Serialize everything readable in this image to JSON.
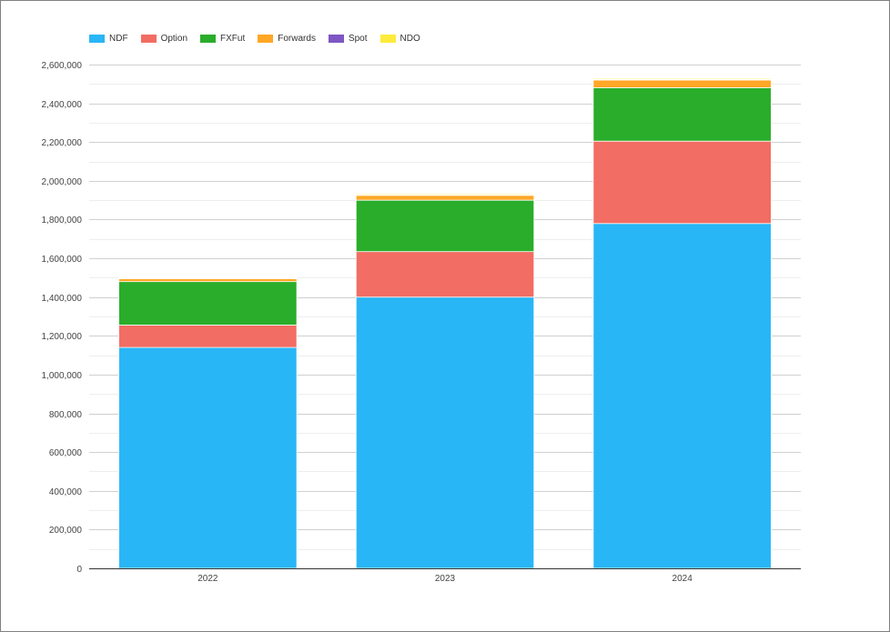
{
  "chart_data": {
    "type": "bar",
    "stacked": true,
    "categories": [
      "2022",
      "2023",
      "2024"
    ],
    "series": [
      {
        "name": "NDF",
        "color": "#29b6f6",
        "values": [
          1140000,
          1400000,
          1780000
        ]
      },
      {
        "name": "Option",
        "color": "#f26d63",
        "values": [
          115000,
          235000,
          425000
        ]
      },
      {
        "name": "FXFut",
        "color": "#2aad2a",
        "values": [
          225000,
          265000,
          275000
        ]
      },
      {
        "name": "Forwards",
        "color": "#ffa726",
        "values": [
          15000,
          25000,
          40000
        ]
      },
      {
        "name": "Spot",
        "color": "#7e57c2",
        "values": [
          2000,
          2000,
          3000
        ]
      },
      {
        "name": "NDO",
        "color": "#ffeb3b",
        "values": [
          3000,
          5000,
          5000
        ]
      }
    ],
    "ylim": [
      0,
      2600000
    ],
    "yticks": [
      "0",
      "200,000",
      "400,000",
      "600,000",
      "800,000",
      "1,000,000",
      "1,200,000",
      "1,400,000",
      "1,600,000",
      "1,800,000",
      "2,000,000",
      "2,200,000",
      "2,400,000",
      "2,600,000"
    ],
    "ytick_values": [
      0,
      200000,
      400000,
      600000,
      800000,
      1000000,
      1200000,
      1400000,
      1600000,
      1800000,
      2000000,
      2200000,
      2400000,
      2600000
    ],
    "grid": true,
    "legend_position": "top-left",
    "title": "",
    "xlabel": "",
    "ylabel": ""
  }
}
